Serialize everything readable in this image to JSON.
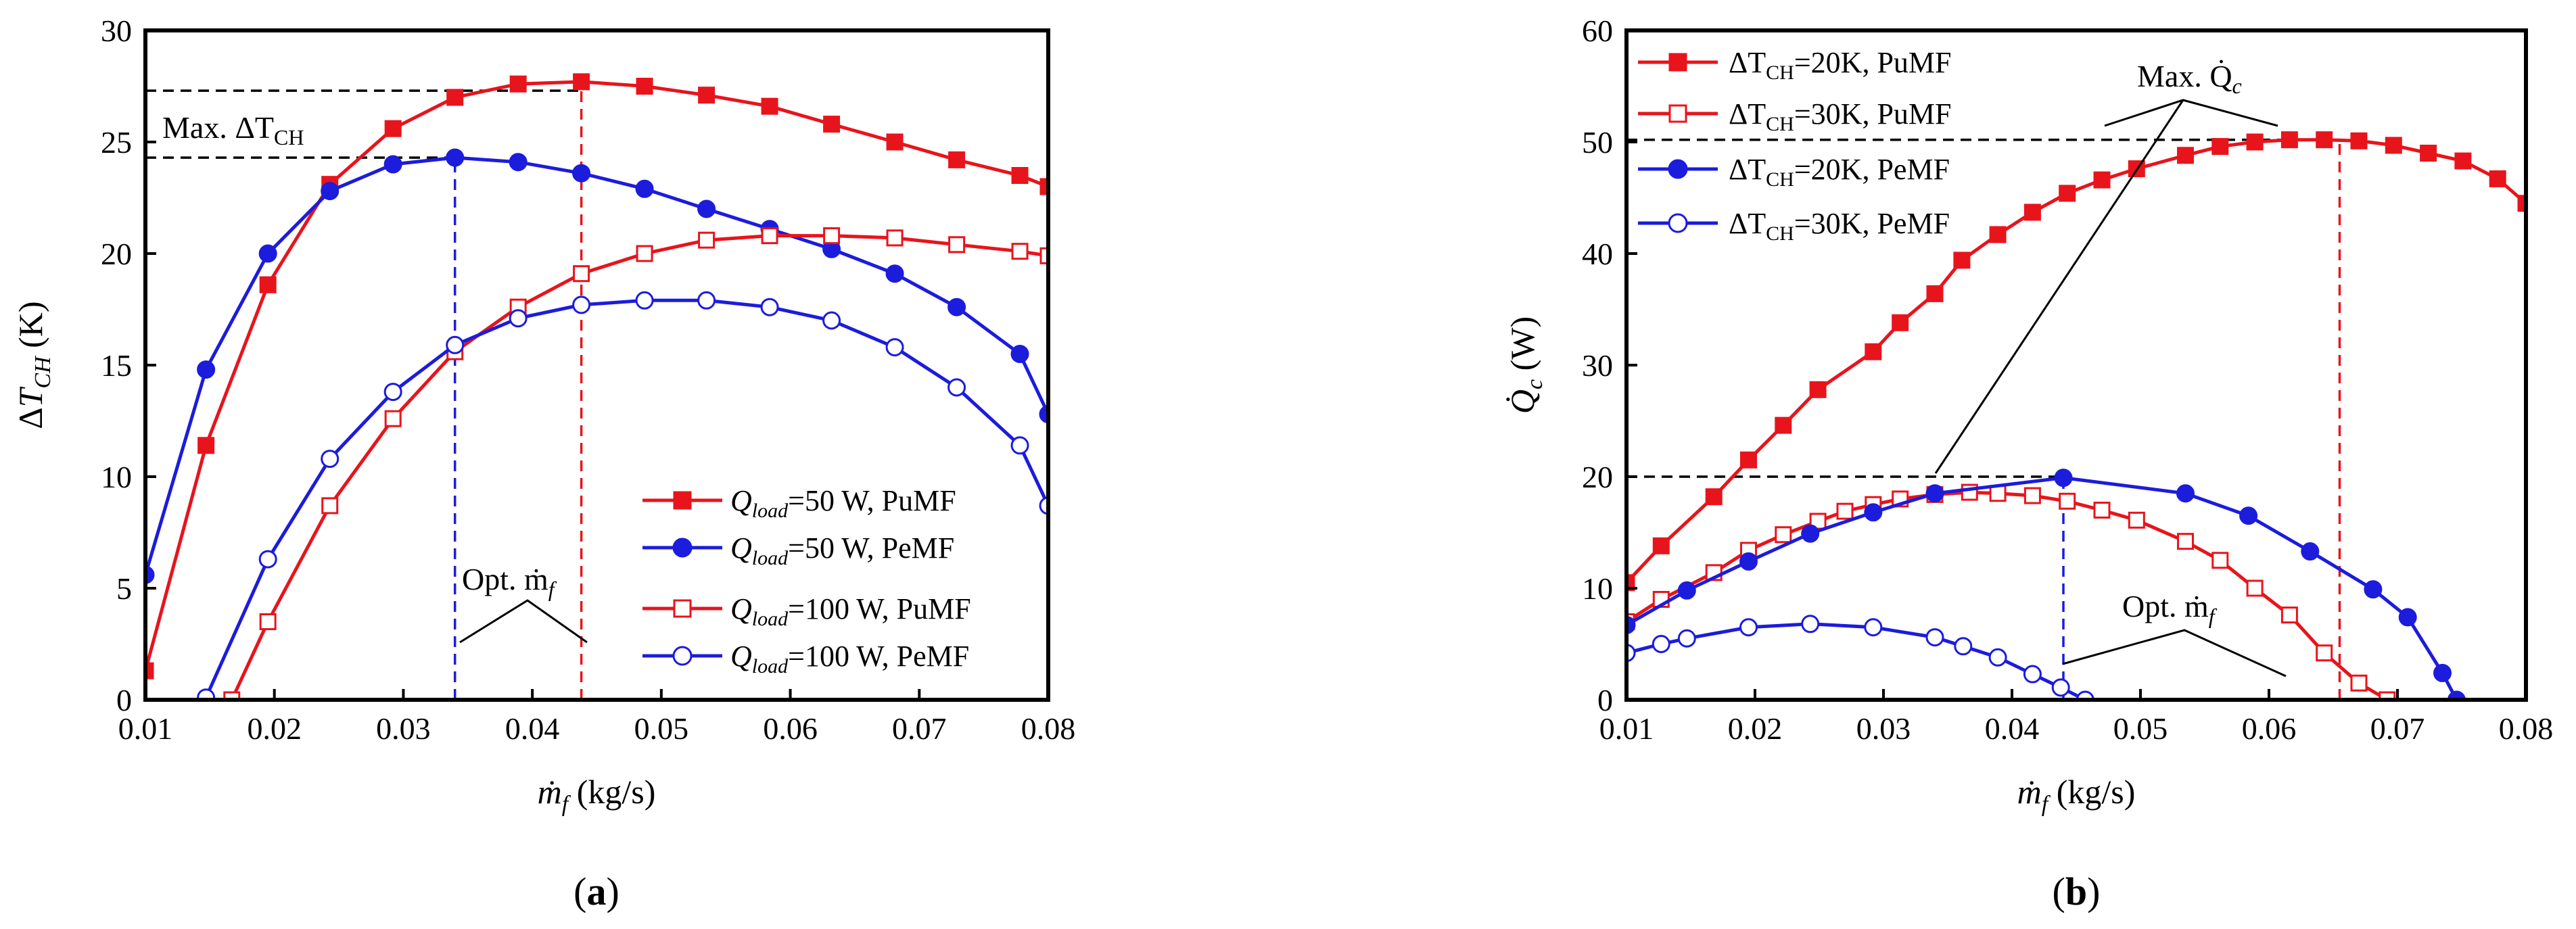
{
  "chart_data": [
    {
      "type": "line",
      "panel_label_prefix": "(",
      "panel_label": "a",
      "panel_label_suffix": ")",
      "xlabel": "ṁ_f (kg/s)",
      "ylabel": "ΔT_CH (K)",
      "xlim": [
        0.01,
        0.08
      ],
      "ylim": [
        0,
        30
      ],
      "xticks": [
        0.01,
        0.02,
        0.03,
        0.04,
        0.05,
        0.06,
        0.07,
        0.08
      ],
      "yticks": [
        0,
        5,
        10,
        15,
        20,
        25,
        30
      ],
      "xtick_labels": [
        "0.01",
        "0.02",
        "0.03",
        "0.04",
        "0.05",
        "0.06",
        "0.07",
        "0.08"
      ],
      "ytick_labels": [
        "0",
        "5",
        "10",
        "15",
        "20",
        "25",
        "30"
      ],
      "grid": false,
      "legend_position": "bottom-right",
      "series": [
        {
          "name": "Q_load=50 W, PuMF",
          "color": "#e8141c",
          "marker": "square-filled",
          "x": [
            0.01,
            0.0147,
            0.0195,
            0.0243,
            0.0292,
            0.034,
            0.0389,
            0.0438,
            0.0487,
            0.0535,
            0.0584,
            0.0632,
            0.0681,
            0.0729,
            0.0778,
            0.08
          ],
          "y": [
            1.3,
            11.4,
            18.6,
            23.1,
            25.6,
            27.0,
            27.6,
            27.7,
            27.5,
            27.1,
            26.6,
            25.8,
            25.0,
            24.2,
            23.5,
            23.0
          ]
        },
        {
          "name": "Q_load=50 W, PeMF",
          "color": "#1c1cdc",
          "marker": "circle-filled",
          "x": [
            0.01,
            0.0147,
            0.0195,
            0.0243,
            0.0292,
            0.034,
            0.0389,
            0.0438,
            0.0487,
            0.0535,
            0.0584,
            0.0632,
            0.0681,
            0.0729,
            0.0778,
            0.08
          ],
          "y": [
            5.6,
            14.8,
            20.0,
            22.8,
            24.0,
            24.3,
            24.1,
            23.6,
            22.9,
            22.0,
            21.1,
            20.2,
            19.1,
            17.6,
            15.5,
            12.8
          ]
        },
        {
          "name": "Q_load=100 W, PuMF",
          "color": "#e8141c",
          "marker": "square-open",
          "x": [
            0.0167,
            0.0195,
            0.0243,
            0.0292,
            0.034,
            0.0389,
            0.0438,
            0.0487,
            0.0535,
            0.0584,
            0.0632,
            0.0681,
            0.0729,
            0.0778,
            0.08
          ],
          "y": [
            0.0,
            3.5,
            8.7,
            12.6,
            15.6,
            17.6,
            19.1,
            20.0,
            20.6,
            20.8,
            20.8,
            20.7,
            20.4,
            20.1,
            19.9
          ]
        },
        {
          "name": "Q_load=100 W, PeMF",
          "color": "#1c1cdc",
          "marker": "circle-open",
          "x": [
            0.0147,
            0.0195,
            0.0243,
            0.0292,
            0.034,
            0.0389,
            0.0438,
            0.0487,
            0.0535,
            0.0584,
            0.0632,
            0.0681,
            0.0729,
            0.0778,
            0.08
          ],
          "y": [
            0.1,
            6.3,
            10.8,
            13.8,
            15.9,
            17.1,
            17.7,
            17.9,
            17.9,
            17.6,
            17.0,
            15.8,
            14.0,
            11.4,
            8.7
          ]
        }
      ],
      "legend_labels": [
        {
          "sym": "Q",
          "sub": "load",
          "rest": "=50 W, PuMF"
        },
        {
          "sym": "Q",
          "sub": "load",
          "rest": "=50 W, PeMF"
        },
        {
          "sym": "Q",
          "sub": "load",
          "rest": "=100 W, PuMF"
        },
        {
          "sym": "Q",
          "sub": "load",
          "rest": "=100 W, PeMF"
        }
      ],
      "reference_lines": [
        {
          "kind": "h",
          "y": 27.3,
          "x_from": 0.01,
          "x_to": 0.0438,
          "color": "#000000"
        },
        {
          "kind": "h",
          "y": 24.3,
          "x_from": 0.01,
          "x_to": 0.034,
          "color": "#000000"
        },
        {
          "kind": "v",
          "x": 0.034,
          "y_from": 0,
          "y_to": 24.3,
          "color": "#1c1cdc"
        },
        {
          "kind": "v",
          "x": 0.0438,
          "y_from": 0,
          "y_to": 27.7,
          "color": "#e8141c"
        }
      ],
      "annotations": [
        {
          "id": "max",
          "text_main": "Max. ΔT",
          "text_sub": "CH"
        },
        {
          "id": "opt",
          "text_main": "Opt. ṁ",
          "text_sub": "f"
        }
      ]
    },
    {
      "type": "line",
      "panel_label_prefix": "(",
      "panel_label": "b",
      "panel_label_suffix": ")",
      "xlabel": "ṁ_f (kg/s)",
      "ylabel": "Q̇_c (W)",
      "xlim": [
        0.01,
        0.08
      ],
      "ylim": [
        0,
        60
      ],
      "xticks": [
        0.01,
        0.02,
        0.03,
        0.04,
        0.05,
        0.06,
        0.07,
        0.08
      ],
      "yticks": [
        0,
        10,
        20,
        30,
        40,
        50,
        60
      ],
      "xtick_labels": [
        "0.01",
        "0.02",
        "0.03",
        "0.04",
        "0.05",
        "0.06",
        "0.07",
        "0.08"
      ],
      "ytick_labels": [
        "0",
        "10",
        "20",
        "30",
        "40",
        "50",
        "60"
      ],
      "grid": false,
      "legend_position": "top-left",
      "series": [
        {
          "name": "ΔT_CH=20K, PuMF",
          "color": "#e8141c",
          "marker": "square-filled",
          "x": [
            0.01,
            0.0127,
            0.0168,
            0.0195,
            0.0222,
            0.0249,
            0.0292,
            0.0313,
            0.034,
            0.0361,
            0.0389,
            0.0416,
            0.0443,
            0.047,
            0.0497,
            0.0535,
            0.0562,
            0.0589,
            0.0616,
            0.0643,
            0.067,
            0.0697,
            0.0724,
            0.0751,
            0.0778,
            0.08
          ],
          "y": [
            10.5,
            13.8,
            18.2,
            21.5,
            24.6,
            27.8,
            31.2,
            33.8,
            36.4,
            39.4,
            41.7,
            43.7,
            45.4,
            46.6,
            47.6,
            48.8,
            49.6,
            50.0,
            50.2,
            50.2,
            50.1,
            49.7,
            49.0,
            48.3,
            46.7,
            44.5
          ]
        },
        {
          "name": "ΔT_CH=30K, PuMF",
          "color": "#e8141c",
          "marker": "square-open",
          "x": [
            0.01,
            0.0127,
            0.0168,
            0.0195,
            0.0222,
            0.0249,
            0.027,
            0.0292,
            0.0313,
            0.034,
            0.0367,
            0.0389,
            0.0416,
            0.0443,
            0.047,
            0.0497,
            0.0535,
            0.0562,
            0.0589,
            0.0616,
            0.0643,
            0.067,
            0.0692
          ],
          "y": [
            7.0,
            9.0,
            11.4,
            13.4,
            14.8,
            16.0,
            16.9,
            17.5,
            18.0,
            18.4,
            18.6,
            18.5,
            18.3,
            17.8,
            17.0,
            16.1,
            14.2,
            12.5,
            10.0,
            7.6,
            4.2,
            1.5,
            0.0
          ]
        },
        {
          "name": "ΔT_CH=20K, PeMF",
          "color": "#1c1cdc",
          "marker": "circle-filled",
          "x": [
            0.01,
            0.0147,
            0.0195,
            0.0243,
            0.0292,
            0.034,
            0.044,
            0.0535,
            0.0584,
            0.0632,
            0.0681,
            0.0708,
            0.0735,
            0.0746
          ],
          "y": [
            6.7,
            9.8,
            12.4,
            14.9,
            16.8,
            18.5,
            19.9,
            18.5,
            16.5,
            13.3,
            9.9,
            7.4,
            2.4,
            0.0
          ]
        },
        {
          "name": "ΔT_CH=30K, PeMF",
          "color": "#1c1cdc",
          "marker": "circle-open",
          "x": [
            0.01,
            0.0127,
            0.0147,
            0.0195,
            0.0243,
            0.0292,
            0.034,
            0.0362,
            0.0389,
            0.0416,
            0.0438,
            0.0457
          ],
          "y": [
            4.2,
            5.0,
            5.5,
            6.5,
            6.8,
            6.5,
            5.6,
            4.8,
            3.8,
            2.3,
            1.1,
            0.0
          ]
        }
      ],
      "legend_labels": [
        {
          "sym": "ΔT",
          "sub": "CH",
          "rest": "=20K, PuMF"
        },
        {
          "sym": "ΔT",
          "sub": "CH",
          "rest": "=30K, PuMF"
        },
        {
          "sym": "ΔT",
          "sub": "CH",
          "rest": "=20K, PeMF"
        },
        {
          "sym": "ΔT",
          "sub": "CH",
          "rest": "=30K, PeMF"
        }
      ],
      "reference_lines": [
        {
          "kind": "h",
          "y": 50.2,
          "x_from": 0.01,
          "x_to": 0.0655,
          "color": "#000000"
        },
        {
          "kind": "h",
          "y": 20.0,
          "x_from": 0.01,
          "x_to": 0.044,
          "color": "#000000"
        },
        {
          "kind": "v",
          "x": 0.044,
          "y_from": 0,
          "y_to": 19.9,
          "color": "#1c1cdc"
        },
        {
          "kind": "v",
          "x": 0.0655,
          "y_from": 0,
          "y_to": 50.2,
          "color": "#e8141c"
        }
      ],
      "annotations": [
        {
          "id": "max",
          "text_main": "Max. Q̇",
          "text_sub": "c"
        },
        {
          "id": "opt",
          "text_main": "Opt. ṁ",
          "text_sub": "f"
        }
      ]
    }
  ]
}
